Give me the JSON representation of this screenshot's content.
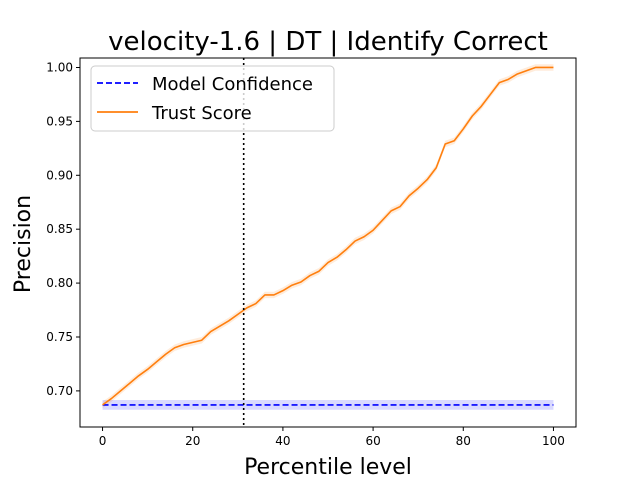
{
  "chart_data": {
    "type": "line",
    "title": "velocity-1.6 | DT | Identify Correct",
    "xlabel": "Percentile level",
    "ylabel": "Precision",
    "xlim": [
      -5,
      105
    ],
    "ylim": [
      0.6665,
      1.0088
    ],
    "xticks": [
      0,
      20,
      40,
      60,
      80,
      100
    ],
    "xtick_labels": [
      "0",
      "20",
      "40",
      "60",
      "80",
      "100"
    ],
    "yticks": [
      0.7,
      0.75,
      0.8,
      0.85,
      0.9,
      0.95,
      1.0
    ],
    "ytick_labels": [
      "0.70",
      "0.75",
      "0.80",
      "0.85",
      "0.90",
      "0.95",
      "1.00"
    ],
    "grid": false,
    "legend_position": "upper-left",
    "reference_line": {
      "x": 31.3,
      "style": "dotted",
      "color": "#000000"
    },
    "series": [
      {
        "name": "Model Confidence",
        "color": "#0000ff",
        "style": "dashed",
        "band_color": "#0000ff",
        "band_halfwidth": 0.0045,
        "x": [
          0,
          100
        ],
        "values": [
          0.687,
          0.687
        ]
      },
      {
        "name": "Trust Score",
        "color": "#ff7f0e",
        "style": "solid",
        "band_color": "#ff7f0e",
        "band_halfwidth": 0.003,
        "x": [
          0,
          2,
          4,
          6,
          8,
          10,
          12,
          14,
          16,
          18,
          20,
          22,
          24,
          26,
          28,
          30,
          32,
          34,
          36,
          38,
          40,
          42,
          44,
          46,
          48,
          50,
          52,
          54,
          56,
          58,
          60,
          62,
          64,
          66,
          68,
          70,
          72,
          74,
          76,
          78,
          80,
          82,
          84,
          86,
          88,
          90,
          92,
          94,
          96,
          98,
          100
        ],
        "values": [
          0.687,
          0.693,
          0.7,
          0.707,
          0.714,
          0.72,
          0.727,
          0.734,
          0.74,
          0.743,
          0.745,
          0.747,
          0.755,
          0.76,
          0.765,
          0.771,
          0.777,
          0.781,
          0.789,
          0.789,
          0.793,
          0.798,
          0.801,
          0.807,
          0.811,
          0.819,
          0.824,
          0.831,
          0.839,
          0.843,
          0.849,
          0.858,
          0.867,
          0.871,
          0.881,
          0.888,
          0.896,
          0.907,
          0.929,
          0.932,
          0.943,
          0.955,
          0.964,
          0.975,
          0.986,
          0.989,
          0.994,
          0.997,
          1.0,
          1.0,
          1.0
        ]
      }
    ]
  }
}
